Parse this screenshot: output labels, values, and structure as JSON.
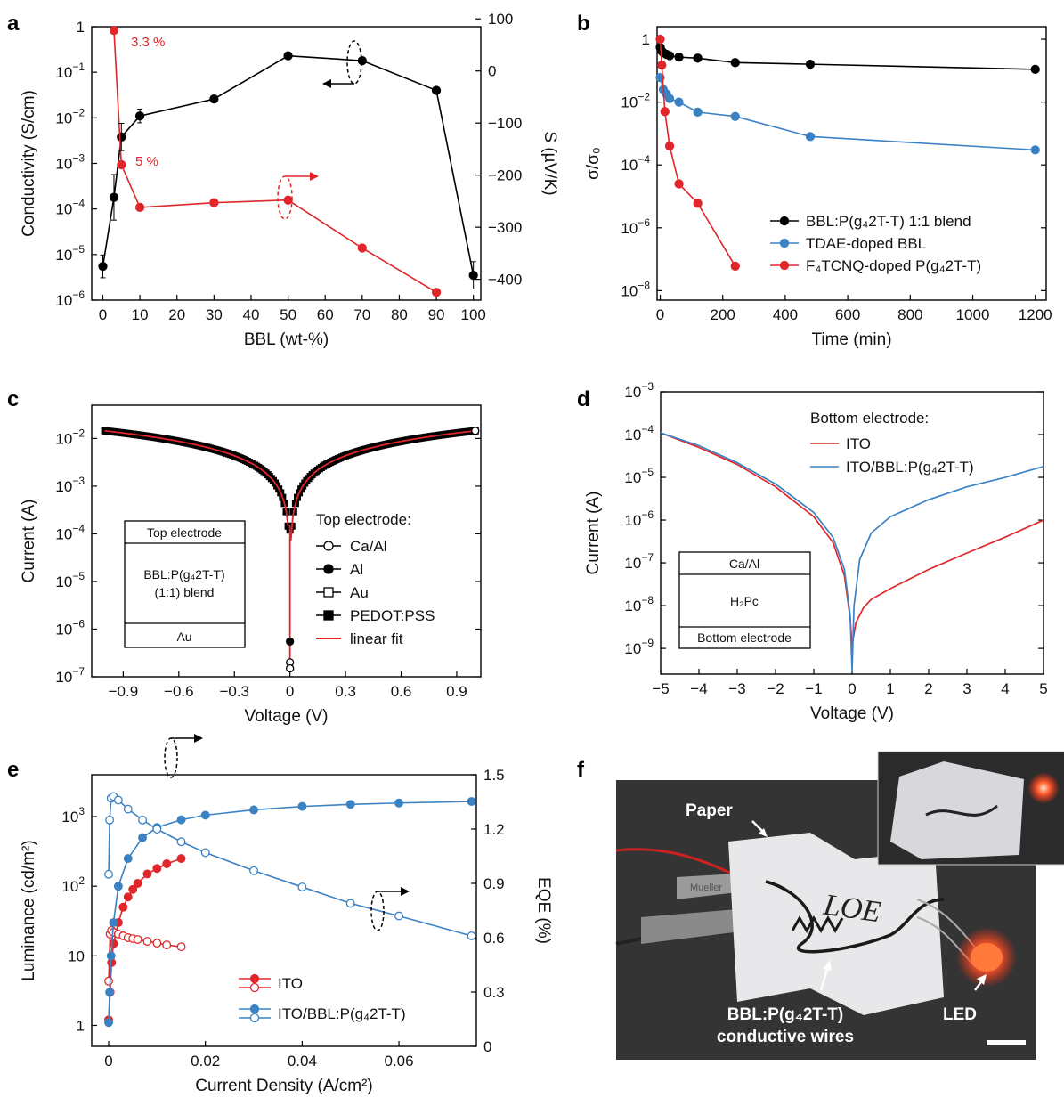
{
  "colors": {
    "black": "#000000",
    "red": "#e0262a",
    "blue": "#3b82c4",
    "photo_bg": "#3a3a3a",
    "paper": "#e8e8ea"
  },
  "panels": {
    "a": {
      "label": "a",
      "annot_high": "3.3 %",
      "annot_low": "5 %"
    },
    "b": {
      "label": "b"
    },
    "c": {
      "label": "c",
      "legend_title": "Top electrode:",
      "inset_top": "Top electrode",
      "inset_mid1": "BBL:P(g₄2T-T)",
      "inset_mid2": "(1:1) blend",
      "inset_bot": "Au"
    },
    "d": {
      "label": "d",
      "legend_title": "Bottom electrode:",
      "inset_top": "Ca/Al",
      "inset_mid": "H₂Pc",
      "inset_bot": "Bottom electrode"
    },
    "e": {
      "label": "e"
    },
    "f": {
      "label": "f",
      "paper": "Paper",
      "wires1": "BBL:P(g₄2T-T)",
      "wires2": "conductive wires",
      "led": "LED",
      "clip_text": "Mueller",
      "paper_ink": "LOE"
    }
  },
  "chart_data": [
    {
      "id": "a",
      "type": "line",
      "xlabel": "BBL (wt-%)",
      "ylabel": "Conductivity (S/cm)",
      "y2label": "S (µV/K)",
      "xlim": [
        -3,
        102
      ],
      "ylim": [
        1e-06,
        1
      ],
      "yscale": "log",
      "y2lim": [
        -440,
        85
      ],
      "xticks": [
        0,
        10,
        20,
        30,
        40,
        50,
        60,
        70,
        80,
        90,
        100
      ],
      "yticks": [
        {
          "v": 1e-06,
          "t": "10",
          "e": "-6"
        },
        {
          "v": 1e-05,
          "t": "10",
          "e": "-5"
        },
        {
          "v": 0.0001,
          "t": "10",
          "e": "-4"
        },
        {
          "v": 0.001,
          "t": "10",
          "e": "-3"
        },
        {
          "v": 0.01,
          "t": "10",
          "e": "-2"
        },
        {
          "v": 0.1,
          "t": "10",
          "e": "-1"
        },
        {
          "v": 1,
          "t": "1",
          "e": ""
        }
      ],
      "y2ticks": [
        100,
        0,
        -100,
        -200,
        -300,
        -400
      ],
      "series": [
        {
          "axis": "left",
          "color": "#000000",
          "x": [
            0,
            3,
            5,
            10,
            30,
            50,
            70,
            90,
            100
          ],
          "y": [
            5.5e-06,
            0.00018,
            0.0038,
            0.011,
            0.026,
            0.23,
            0.18,
            0.04,
            3.5e-06
          ]
        },
        {
          "axis": "right",
          "color": "#e0262a",
          "x": [
            3,
            5,
            10,
            30,
            50,
            70,
            90
          ],
          "y": [
            78,
            -180,
            -262,
            -253,
            -248,
            -340,
            -425
          ]
        }
      ]
    },
    {
      "id": "b",
      "type": "line",
      "xlabel": "Time (min)",
      "ylabel": "σ/σ₀",
      "xlim": [
        -10,
        1235
      ],
      "ylim": [
        5e-09,
        2.5
      ],
      "yscale": "log",
      "xticks": [
        0,
        200,
        400,
        600,
        800,
        1000,
        1200
      ],
      "yticks": [
        {
          "v": 1,
          "t": "1",
          "e": ""
        },
        {
          "v": 0.01,
          "t": "10",
          "e": "-2"
        },
        {
          "v": 0.0001,
          "t": "10",
          "e": "-4"
        },
        {
          "v": 1e-06,
          "t": "10",
          "e": "-6"
        },
        {
          "v": 1e-08,
          "t": "10",
          "e": "-8"
        }
      ],
      "series": [
        {
          "name": "BBL:P(g₄2T-T) 1:1 blend",
          "color": "#000000",
          "x": [
            0,
            5,
            10,
            20,
            30,
            60,
            120,
            240,
            480,
            1200
          ],
          "y": [
            0.55,
            0.42,
            0.37,
            0.33,
            0.3,
            0.27,
            0.25,
            0.18,
            0.16,
            0.11
          ]
        },
        {
          "name": "TDAE-doped BBL",
          "color": "#3b82c4",
          "x": [
            0,
            10,
            20,
            30,
            60,
            120,
            240,
            480,
            1200
          ],
          "y": [
            0.06,
            0.025,
            0.018,
            0.013,
            0.01,
            0.0048,
            0.0035,
            0.0008,
            0.0003
          ]
        },
        {
          "name": "F₄TCNQ-doped P(g₄2T-T)",
          "color": "#e0262a",
          "x": [
            0,
            5,
            15,
            30,
            60,
            120,
            240
          ],
          "y": [
            1.0,
            0.15,
            0.005,
            0.0004,
            2.5e-05,
            6e-06,
            6e-08
          ]
        }
      ]
    },
    {
      "id": "c",
      "type": "line",
      "xlabel": "Voltage (V)",
      "ylabel": "Current (A)",
      "xlim": [
        -1.07,
        1.03
      ],
      "ylim": [
        1e-07,
        0.05
      ],
      "yscale": "log",
      "xticks": [
        -0.9,
        -0.6,
        -0.3,
        0,
        0.3,
        0.6,
        0.9
      ],
      "xtick_labels": [
        "−0.9",
        "−0.6",
        "−0.3",
        "0",
        "0.3",
        "0.6",
        "0.9"
      ],
      "yticks": [
        {
          "v": 0.01,
          "t": "10",
          "e": "-2"
        },
        {
          "v": 0.001,
          "t": "10",
          "e": "-3"
        },
        {
          "v": 0.0001,
          "t": "10",
          "e": "-4"
        },
        {
          "v": 1e-05,
          "t": "10",
          "e": "-5"
        },
        {
          "v": 1e-06,
          "t": "10",
          "e": "-6"
        },
        {
          "v": 1e-07,
          "t": "10",
          "e": "-7"
        }
      ],
      "slope_A_per_V": 0.0145,
      "series": [
        {
          "name": "Ca/Al",
          "marker": "circle-open"
        },
        {
          "name": "Al",
          "marker": "circle-filled"
        },
        {
          "name": "Au",
          "marker": "square-open"
        },
        {
          "name": "PEDOT:PSS",
          "marker": "square-filled"
        },
        {
          "name": "linear fit",
          "marker": "line-red"
        }
      ],
      "min_points": [
        {
          "x": 0,
          "y": 5.5e-07
        },
        {
          "x": 0,
          "y": 2e-07
        },
        {
          "x": 0,
          "y": 1.5e-07
        }
      ]
    },
    {
      "id": "d",
      "type": "line",
      "xlabel": "Voltage (V)",
      "ylabel": "Current (A)",
      "xlim": [
        -5,
        5
      ],
      "ylim": [
        2.5e-10,
        0.001
      ],
      "yscale": "log",
      "xticks": [
        -5,
        -4,
        -3,
        -2,
        -1,
        0,
        1,
        2,
        3,
        4,
        5
      ],
      "xtick_labels": [
        "−5",
        "−4",
        "−3",
        "−2",
        "−1",
        "0",
        "1",
        "2",
        "3",
        "4",
        "5"
      ],
      "yticks": [
        {
          "v": 0.001,
          "t": "10",
          "e": "-3"
        },
        {
          "v": 0.0001,
          "t": "10",
          "e": "-4"
        },
        {
          "v": 1e-05,
          "t": "10",
          "e": "-5"
        },
        {
          "v": 1e-06,
          "t": "10",
          "e": "-6"
        },
        {
          "v": 1e-07,
          "t": "10",
          "e": "-7"
        },
        {
          "v": 1e-08,
          "t": "10",
          "e": "-8"
        },
        {
          "v": 1e-09,
          "t": "10",
          "e": "-9"
        }
      ],
      "series": [
        {
          "name": "ITO",
          "color": "#e0262a",
          "x": [
            -5,
            -4,
            -3,
            -2,
            -1,
            -0.5,
            -0.2,
            -0.05,
            0,
            0.1,
            0.3,
            0.5,
            1,
            2,
            3,
            4,
            5
          ],
          "y": [
            0.00011,
            5e-05,
            2e-05,
            6e-06,
            1.2e-06,
            3e-07,
            5e-08,
            5e-09,
            1.2e-09,
            4e-09,
            9e-09,
            1.4e-08,
            2.5e-08,
            7e-08,
            1.7e-07,
            4e-07,
            1e-06
          ]
        },
        {
          "name": "ITO/BBL:P(g₄2T-T)",
          "color": "#3b82c4",
          "x": [
            -5,
            -4,
            -3,
            -2,
            -1,
            -0.5,
            -0.2,
            -0.05,
            0,
            0.05,
            0.2,
            0.5,
            1,
            2,
            3,
            4,
            5
          ],
          "y": [
            0.00011,
            5.5e-05,
            2.2e-05,
            7e-06,
            1.5e-06,
            4e-07,
            7e-08,
            6e-09,
            3e-10,
            1e-08,
            1.2e-07,
            5e-07,
            1.2e-06,
            3e-06,
            6e-06,
            1e-05,
            1.8e-05
          ]
        }
      ]
    },
    {
      "id": "e",
      "type": "scatter",
      "xlabel": "Current Density (A/cm²)",
      "ylabel": "Luminance (cd/m²)",
      "y2label": "EQE (%)",
      "xlim": [
        -0.0035,
        0.076
      ],
      "ylim": [
        0.5,
        4000
      ],
      "yscale": "log",
      "y2lim": [
        0,
        1.5
      ],
      "xticks": [
        0,
        0.02,
        0.04,
        0.06
      ],
      "yticks": [
        {
          "v": 1,
          "t": "1",
          "e": ""
        },
        {
          "v": 10,
          "t": "10",
          "e": ""
        },
        {
          "v": 100,
          "t": "10",
          "e": "2"
        },
        {
          "v": 1000,
          "t": "10",
          "e": "3"
        }
      ],
      "y2ticks": [
        0,
        0.3,
        0.6,
        0.9,
        1.2,
        1.5
      ],
      "series": [
        {
          "name": "ITO",
          "color": "#e0262a",
          "luminance": {
            "x": [
              0,
              0.0003,
              0.0006,
              0.001,
              0.002,
              0.003,
              0.004,
              0.005,
              0.006,
              0.008,
              0.01,
              0.012,
              0.015
            ],
            "y": [
              1.2,
              3,
              8,
              15,
              30,
              50,
              70,
              90,
              110,
              150,
              180,
              210,
              250
            ]
          },
          "eqe": {
            "x": [
              0,
              0.0003,
              0.0006,
              0.001,
              0.002,
              0.003,
              0.004,
              0.005,
              0.006,
              0.008,
              0.01,
              0.012,
              0.015
            ],
            "y": [
              0.36,
              0.62,
              0.64,
              0.63,
              0.62,
              0.61,
              0.6,
              0.595,
              0.59,
              0.58,
              0.57,
              0.56,
              0.55
            ]
          }
        },
        {
          "name": "ITO/BBL:P(g₄2T-T)",
          "color": "#3b82c4",
          "luminance": {
            "x": [
              0,
              0.0002,
              0.0005,
              0.001,
              0.002,
              0.004,
              0.007,
              0.01,
              0.015,
              0.02,
              0.03,
              0.04,
              0.05,
              0.06,
              0.075
            ],
            "y": [
              1.1,
              3,
              10,
              30,
              100,
              250,
              500,
              700,
              900,
              1050,
              1250,
              1400,
              1500,
              1570,
              1650
            ]
          },
          "eqe": {
            "x": [
              0,
              0.0002,
              0.0005,
              0.001,
              0.002,
              0.004,
              0.007,
              0.01,
              0.015,
              0.02,
              0.03,
              0.04,
              0.05,
              0.06,
              0.075
            ],
            "y": [
              0.95,
              1.25,
              1.37,
              1.38,
              1.36,
              1.31,
              1.25,
              1.2,
              1.13,
              1.07,
              0.97,
              0.88,
              0.79,
              0.72,
              0.61
            ]
          }
        }
      ]
    }
  ]
}
